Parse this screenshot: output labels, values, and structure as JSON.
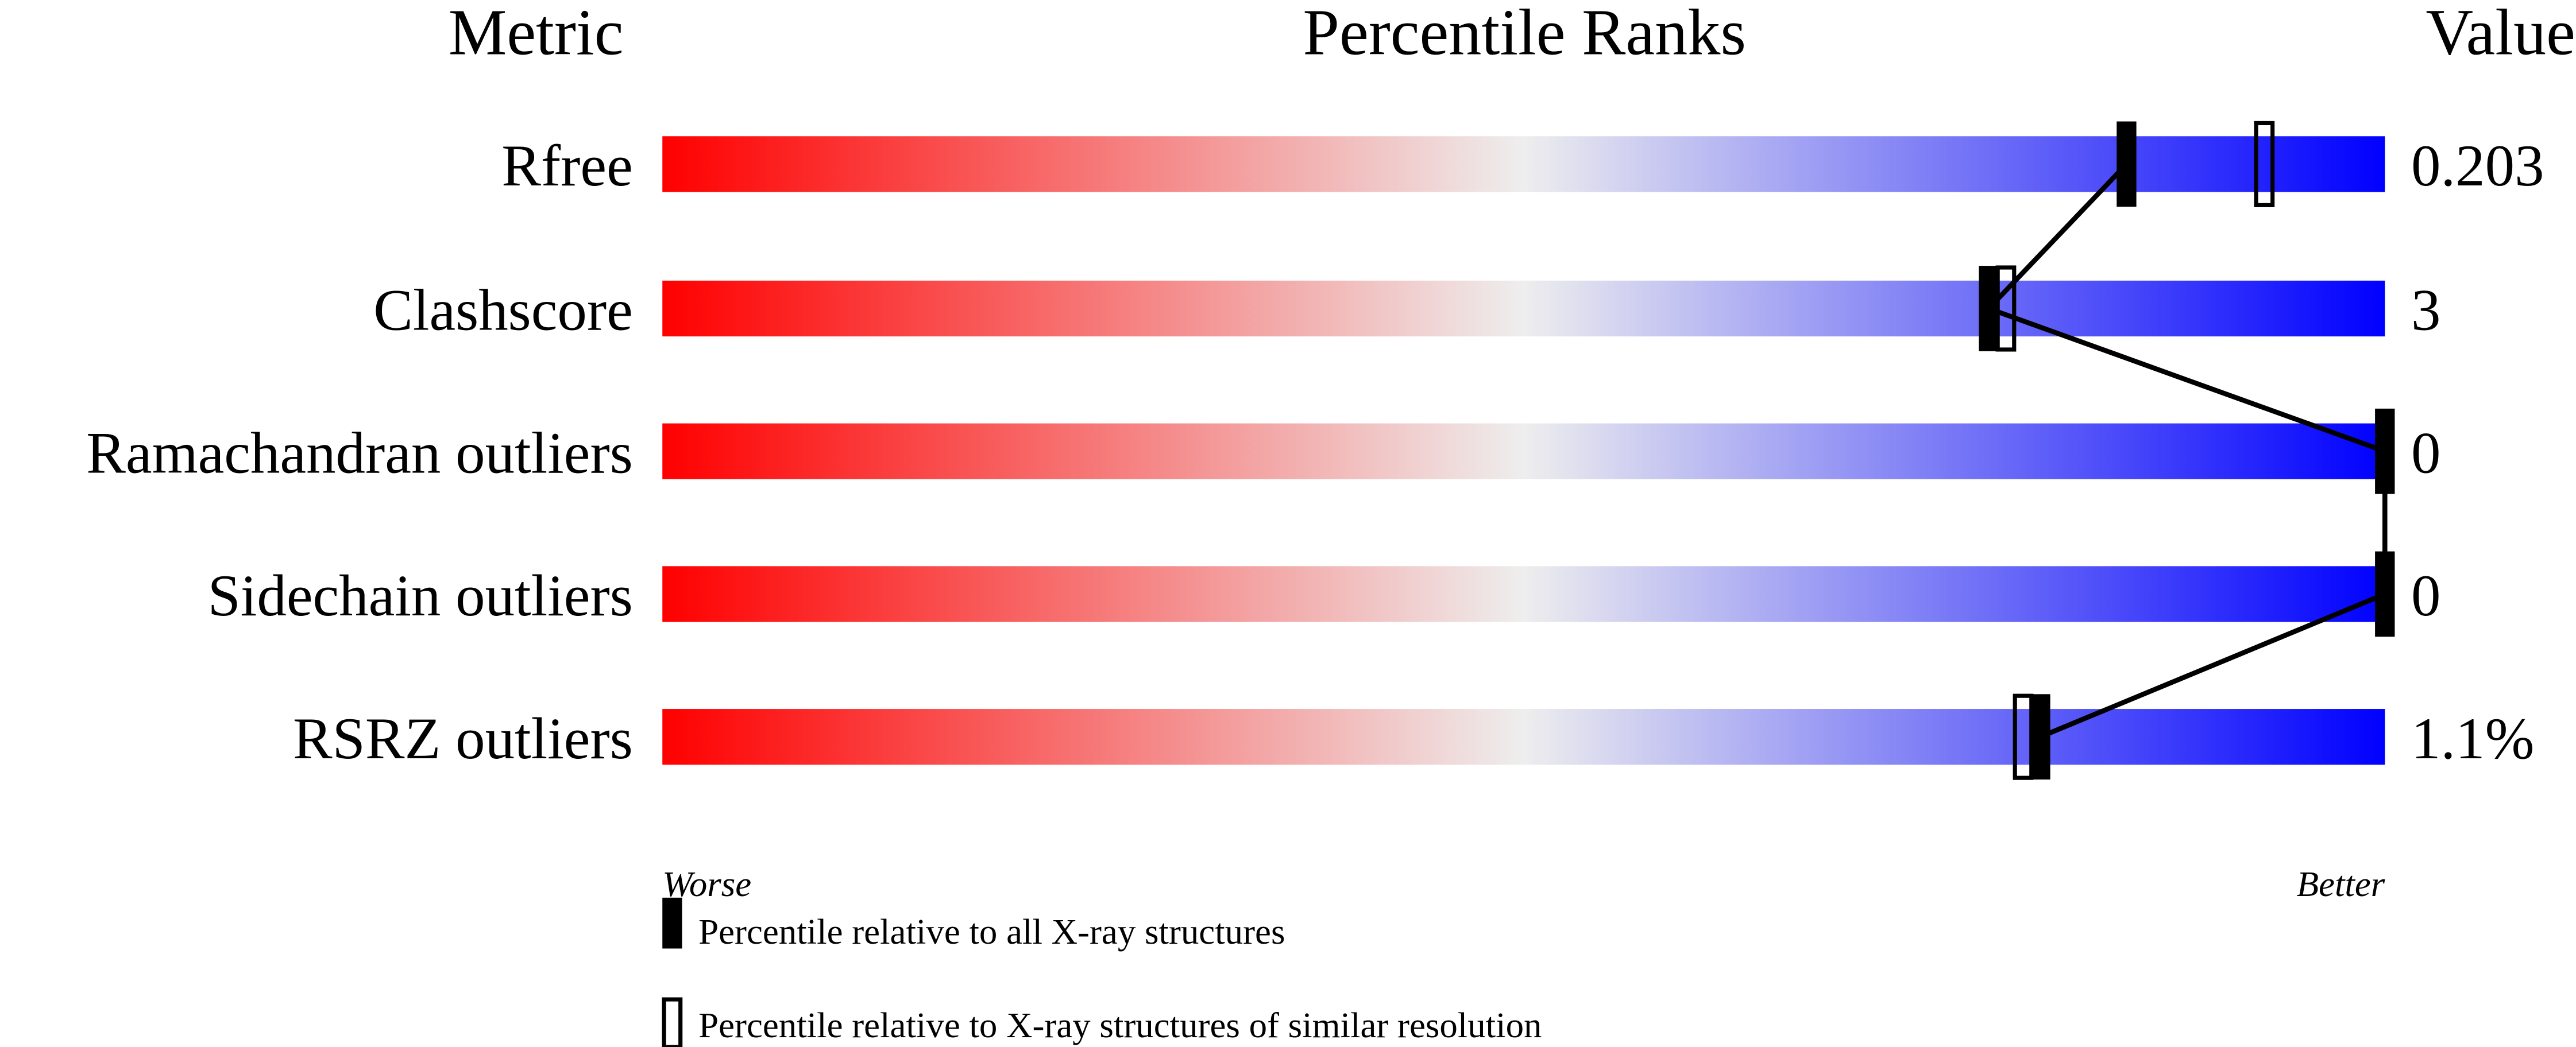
{
  "chart_data": {
    "type": "bar",
    "headers": {
      "metric": "Metric",
      "ranks": "Percentile Ranks",
      "value": "Value"
    },
    "categories": [
      "Rfree",
      "Clashscore",
      "Ramachandran outliers",
      "Sidechain outliers",
      "RSRZ outliers"
    ],
    "values": [
      "0.203",
      "3",
      "0",
      "0",
      "1.1%"
    ],
    "series": [
      {
        "name": "Percentile relative to all X-ray structures",
        "values": [
          85,
          77,
          100,
          100,
          80
        ],
        "style": "filled"
      },
      {
        "name": "Percentile relative to X-ray structures of similar resolution",
        "values": [
          93,
          78,
          100,
          100,
          79
        ],
        "style": "open"
      }
    ],
    "xlim": [
      0,
      100
    ],
    "axis_labels": {
      "left": "Worse",
      "right": "Better"
    },
    "gradient_colors": [
      "#ff0000",
      "#eeeeee",
      "#0000ff"
    ],
    "legend": [
      {
        "label": "Percentile relative to all X-ray structures",
        "style": "filled"
      },
      {
        "label": "Percentile relative to X-ray structures of similar resolution",
        "style": "open"
      }
    ],
    "legend_position": "bottom"
  }
}
